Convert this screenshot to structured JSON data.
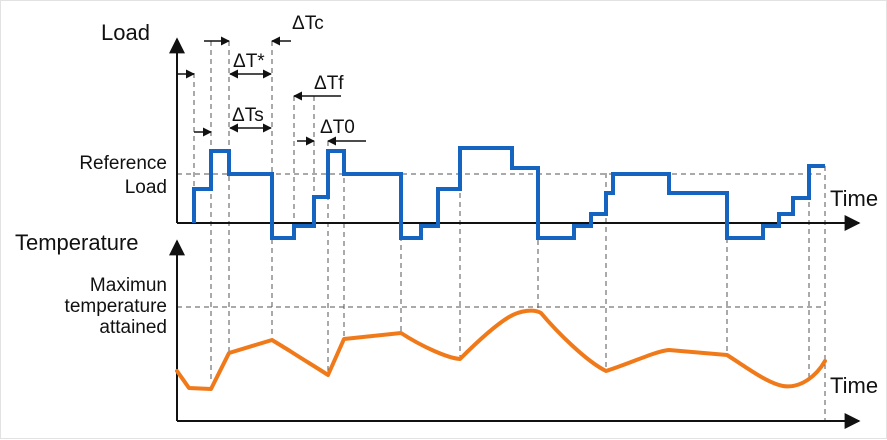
{
  "labels": {
    "load_axis": "Load",
    "temperature_axis": "Temperature",
    "time_top": "Time",
    "time_bottom": "Time",
    "reference_line1": "Reference",
    "reference_line2": "Load",
    "max_temp_line1": "Maximun",
    "max_temp_line2": "temperature",
    "max_temp_line3": "attained"
  },
  "intervals": {
    "dtc": "ΔTc",
    "dtstar": "ΔT*",
    "dtf": "ΔTf",
    "dts": "ΔTs",
    "dt0": "ΔT0"
  },
  "colors": {
    "load_line": "#1565c0",
    "temperature_line": "#f07a1a",
    "axes": "#111111",
    "guides": "#555555"
  }
}
